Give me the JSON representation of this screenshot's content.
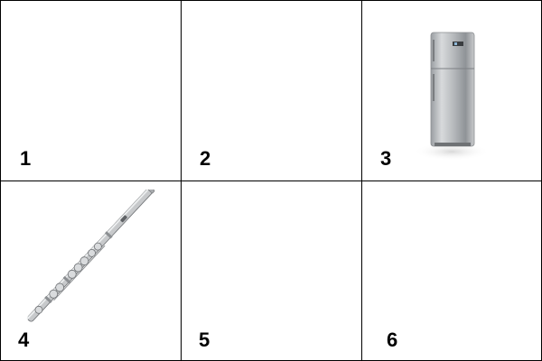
{
  "cells": [
    {
      "number": "1",
      "item": null
    },
    {
      "number": "2",
      "item": null
    },
    {
      "number": "3",
      "item": "refrigerator-icon"
    },
    {
      "number": "4",
      "item": "flute-icon"
    },
    {
      "number": "5",
      "item": null
    },
    {
      "number": "6",
      "item": null
    }
  ],
  "colors": {
    "border": "#000000",
    "background": "#ffffff",
    "metal": "#b5b8bb"
  }
}
